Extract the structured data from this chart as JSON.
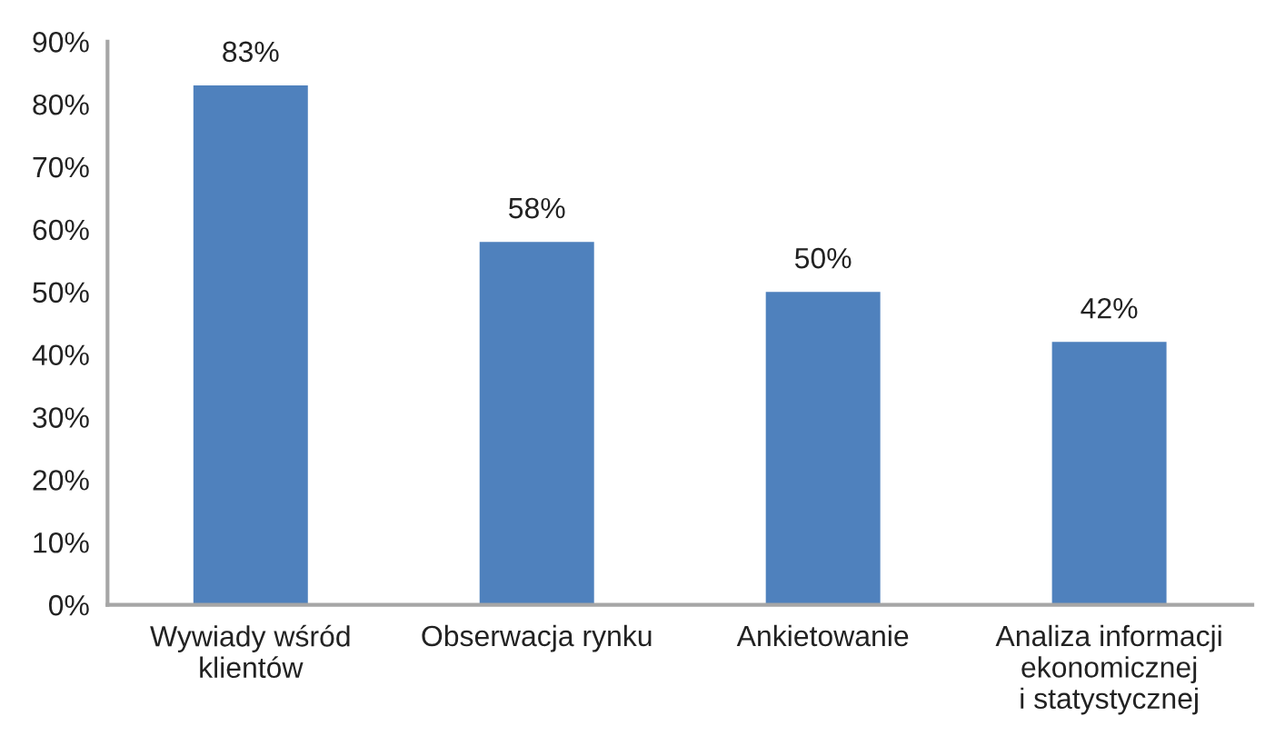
{
  "chart_data": {
    "type": "bar",
    "categories": [
      "Wywiady wśród\nklientów",
      "Obserwacja rynku",
      "Ankietowanie",
      "Analiza informacji\nekonomicznej\ni statystycznej"
    ],
    "values": [
      83,
      58,
      50,
      42
    ],
    "color": "#4f81bd",
    "value_labels": [
      "83%",
      "58%",
      "50%",
      "42%"
    ],
    "ylim": [
      0,
      90
    ],
    "yticks": [
      {
        "value": 0,
        "label": "0%"
      },
      {
        "value": 10,
        "label": "10%"
      },
      {
        "value": 20,
        "label": "20%"
      },
      {
        "value": 30,
        "label": "30%"
      },
      {
        "value": 40,
        "label": "40%"
      },
      {
        "value": 50,
        "label": "50%"
      },
      {
        "value": 60,
        "label": "60%"
      },
      {
        "value": 70,
        "label": "70%"
      },
      {
        "value": 80,
        "label": "80%"
      },
      {
        "value": 90,
        "label": "90%"
      }
    ]
  }
}
